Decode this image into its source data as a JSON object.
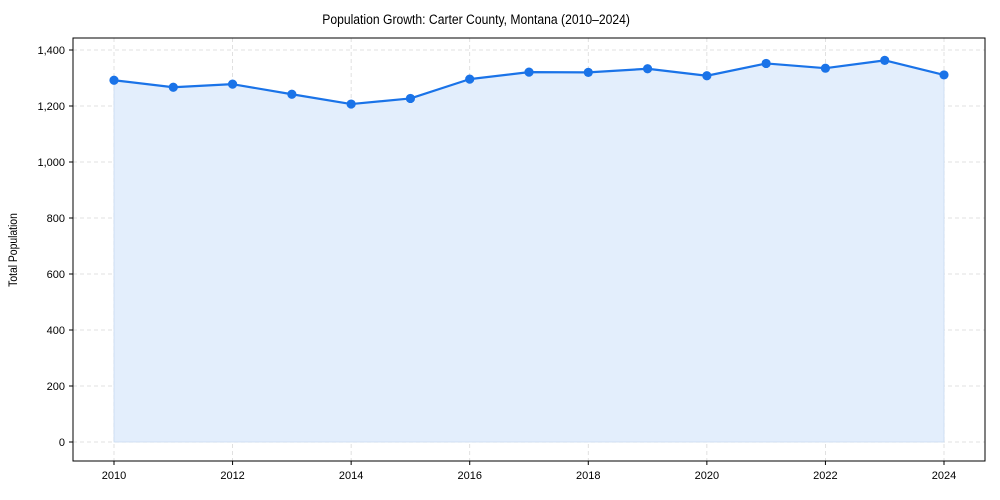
{
  "chart_data": {
    "type": "area",
    "title": "Population Growth: Carter County, Montana (2010–2024)",
    "xlabel": "",
    "ylabel": "Total Population",
    "x": [
      2010,
      2011,
      2012,
      2013,
      2014,
      2015,
      2016,
      2017,
      2018,
      2019,
      2020,
      2021,
      2022,
      2023,
      2024
    ],
    "series": [
      {
        "name": "Total Population",
        "values": [
          1292,
          1267,
          1278,
          1242,
          1207,
          1227,
          1296,
          1321,
          1320,
          1333,
          1308,
          1352,
          1335,
          1363,
          1311
        ],
        "color": "#1a73e8",
        "fill_color": "#e3eefc"
      }
    ],
    "xticks": [
      2010,
      2012,
      2014,
      2016,
      2018,
      2020,
      2022,
      2024
    ],
    "yticks": [
      0,
      200,
      400,
      600,
      800,
      1000,
      1200,
      1400
    ],
    "ytick_labels": [
      "0",
      "200",
      "400",
      "600",
      "800",
      "1,000",
      "1,200",
      "1,400"
    ],
    "xlim": [
      2009.3,
      2024.7
    ],
    "ylim": [
      -68,
      1443
    ],
    "grid": true,
    "legend": null
  }
}
